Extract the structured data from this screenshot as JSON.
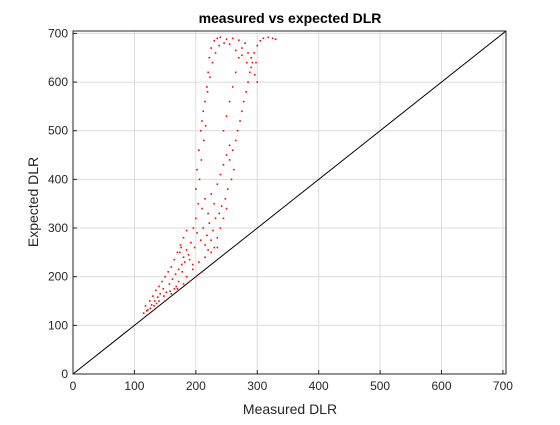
{
  "chart_data": {
    "type": "scatter",
    "title": "measured vs expected DLR",
    "xlabel": "Measured DLR",
    "ylabel": "Expected DLR",
    "xlim": [
      0,
      705
    ],
    "ylim": [
      0,
      705
    ],
    "xticks": [
      0,
      100,
      200,
      300,
      400,
      500,
      600,
      700
    ],
    "yticks": [
      0,
      100,
      200,
      300,
      400,
      500,
      600,
      700
    ],
    "grid": true,
    "marker_color": "#ff0000",
    "reference_line": {
      "x": [
        0,
        705
      ],
      "y": [
        0,
        705
      ],
      "color": "#000000"
    },
    "series": [
      {
        "points": [
          [
            115,
            125
          ],
          [
            118,
            140
          ],
          [
            122,
            132
          ],
          [
            125,
            150
          ],
          [
            128,
            142
          ],
          [
            130,
            160
          ],
          [
            133,
            150
          ],
          [
            135,
            172
          ],
          [
            138,
            158
          ],
          [
            140,
            180
          ],
          [
            142,
            165
          ],
          [
            145,
            190
          ],
          [
            147,
            175
          ],
          [
            150,
            200
          ],
          [
            152,
            168
          ],
          [
            155,
            210
          ],
          [
            157,
            185
          ],
          [
            160,
            220
          ],
          [
            162,
            195
          ],
          [
            165,
            235
          ],
          [
            167,
            205
          ],
          [
            170,
            250
          ],
          [
            172,
            215
          ],
          [
            175,
            265
          ],
          [
            177,
            225
          ],
          [
            180,
            280
          ],
          [
            182,
            230
          ],
          [
            185,
            295
          ],
          [
            150,
            150
          ],
          [
            160,
            165
          ],
          [
            170,
            175
          ],
          [
            180,
            185
          ],
          [
            190,
            190
          ],
          [
            200,
            200
          ],
          [
            210,
            210
          ],
          [
            195,
            215
          ],
          [
            205,
            230
          ],
          [
            215,
            240
          ],
          [
            225,
            250
          ],
          [
            235,
            260
          ],
          [
            188,
            245
          ],
          [
            192,
            270
          ],
          [
            198,
            260
          ],
          [
            202,
            290
          ],
          [
            208,
            275
          ],
          [
            212,
            300
          ],
          [
            218,
            285
          ],
          [
            222,
            310
          ],
          [
            228,
            295
          ],
          [
            232,
            320
          ],
          [
            238,
            330
          ],
          [
            242,
            345
          ],
          [
            248,
            360
          ],
          [
            252,
            380
          ],
          [
            258,
            400
          ],
          [
            262,
            420
          ],
          [
            255,
            440
          ],
          [
            260,
            460
          ],
          [
            265,
            480
          ],
          [
            268,
            500
          ],
          [
            272,
            520
          ],
          [
            275,
            540
          ],
          [
            278,
            560
          ],
          [
            282,
            580
          ],
          [
            285,
            600
          ],
          [
            288,
            620
          ],
          [
            292,
            640
          ],
          [
            295,
            660
          ],
          [
            300,
            675
          ],
          [
            305,
            685
          ],
          [
            310,
            690
          ],
          [
            318,
            692
          ],
          [
            325,
            690
          ],
          [
            330,
            688
          ],
          [
            200,
            380
          ],
          [
            202,
            420
          ],
          [
            205,
            460
          ],
          [
            208,
            500
          ],
          [
            210,
            520
          ],
          [
            212,
            540
          ],
          [
            215,
            560
          ],
          [
            218,
            590
          ],
          [
            220,
            620
          ],
          [
            222,
            650
          ],
          [
            225,
            670
          ],
          [
            230,
            685
          ],
          [
            235,
            690
          ],
          [
            240,
            692
          ],
          [
            250,
            688
          ],
          [
            260,
            690
          ],
          [
            270,
            686
          ],
          [
            280,
            680
          ],
          [
            210,
            340
          ],
          [
            215,
            360
          ],
          [
            220,
            330
          ],
          [
            225,
            370
          ],
          [
            230,
            350
          ],
          [
            235,
            390
          ],
          [
            240,
            410
          ],
          [
            245,
            430
          ],
          [
            250,
            450
          ],
          [
            255,
            470
          ],
          [
            245,
            500
          ],
          [
            250,
            530
          ],
          [
            255,
            560
          ],
          [
            260,
            590
          ],
          [
            265,
            620
          ],
          [
            270,
            650
          ],
          [
            275,
            670
          ],
          [
            285,
            660
          ],
          [
            290,
            650
          ],
          [
            298,
            640
          ],
          [
            240,
            300
          ],
          [
            245,
            320
          ],
          [
            250,
            340
          ],
          [
            235,
            280
          ],
          [
            230,
            260
          ],
          [
            225,
            275
          ],
          [
            220,
            255
          ],
          [
            215,
            265
          ],
          [
            185,
            200
          ],
          [
            178,
            210
          ],
          [
            172,
            190
          ],
          [
            168,
            180
          ],
          [
            165,
            175
          ],
          [
            158,
            170
          ],
          [
            148,
            160
          ],
          [
            140,
            150
          ],
          [
            136,
            145
          ],
          [
            132,
            140
          ],
          [
            126,
            135
          ],
          [
            120,
            130
          ],
          [
            195,
            225
          ],
          [
            190,
            235
          ],
          [
            185,
            255
          ],
          [
            180,
            240
          ],
          [
            176,
            260
          ],
          [
            174,
            250
          ],
          [
            196,
            300
          ],
          [
            200,
            320
          ],
          [
            204,
            350
          ],
          [
            206,
            400
          ],
          [
            209,
            440
          ],
          [
            213,
            480
          ],
          [
            216,
            510
          ],
          [
            219,
            580
          ],
          [
            223,
            610
          ],
          [
            227,
            640
          ],
          [
            232,
            660
          ],
          [
            238,
            675
          ],
          [
            246,
            680
          ],
          [
            255,
            678
          ],
          [
            265,
            665
          ],
          [
            275,
            655
          ],
          [
            283,
            640
          ],
          [
            290,
            630
          ],
          [
            296,
            615
          ],
          [
            300,
            600
          ]
        ]
      }
    ]
  }
}
